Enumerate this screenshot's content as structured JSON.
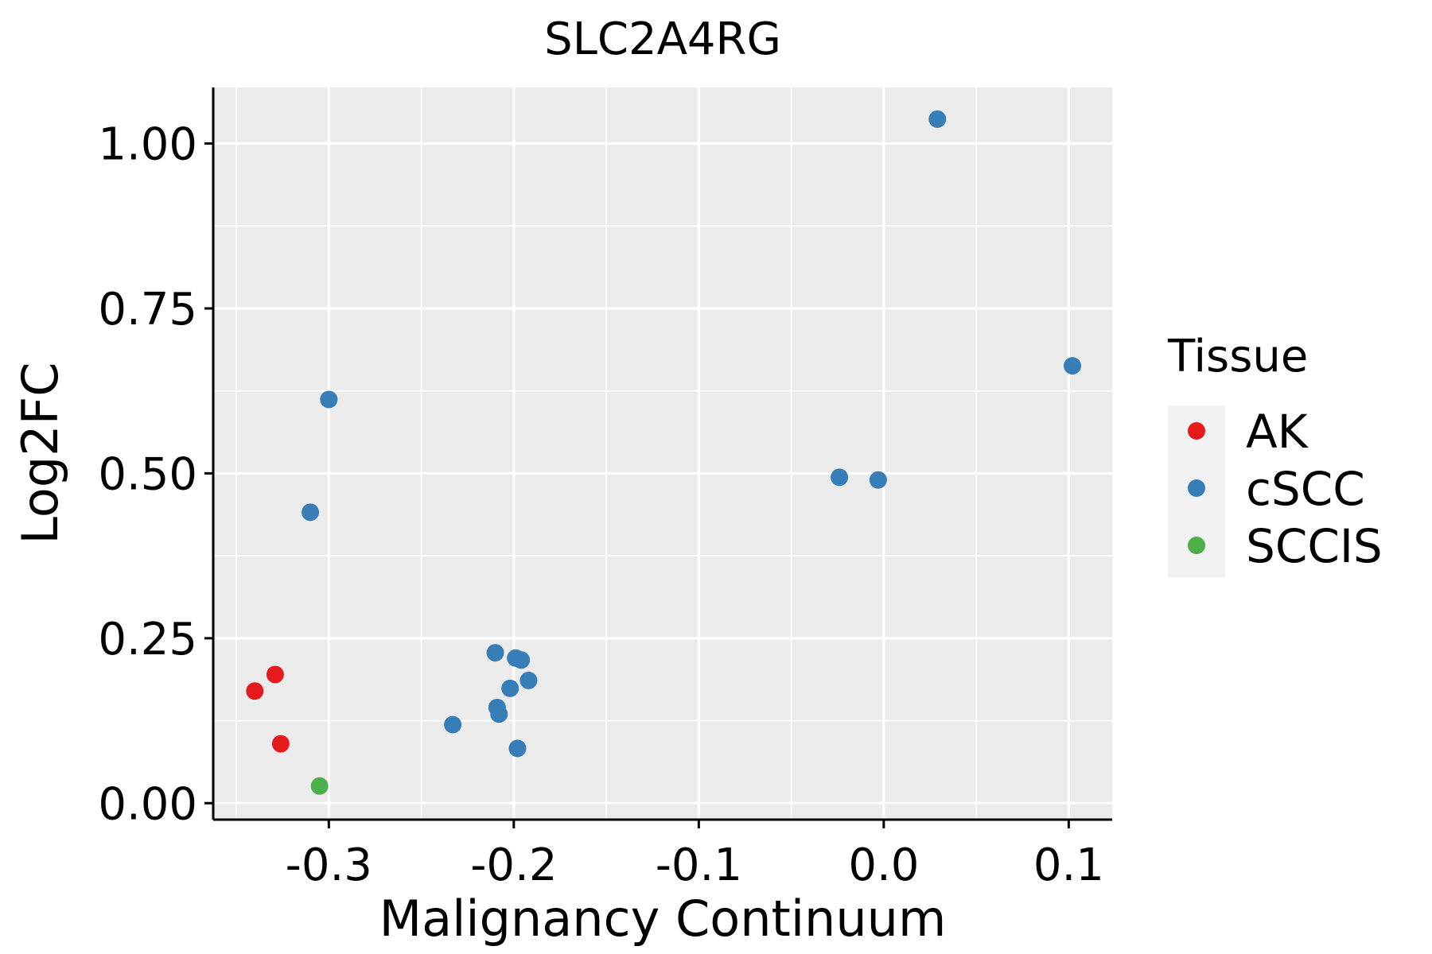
{
  "chart_data": {
    "type": "scatter",
    "title": "SLC2A4RG",
    "xlabel": "Malignancy Continuum",
    "ylabel": "Log2FC",
    "xlim": [
      -0.3625,
      0.1235
    ],
    "ylim": [
      -0.025,
      1.085
    ],
    "x_ticks": [
      -0.3,
      -0.2,
      -0.1,
      0.0,
      0.1
    ],
    "x_tick_labels": [
      "-0.3",
      "-0.2",
      "-0.1",
      "0.0",
      "0.1"
    ],
    "y_ticks": [
      0.0,
      0.25,
      0.5,
      0.75,
      1.0
    ],
    "y_tick_labels": [
      "0.00",
      "0.25",
      "0.50",
      "0.75",
      "1.00"
    ],
    "grid": true,
    "legend": {
      "title": "Tissue",
      "position": "right",
      "entries": [
        {
          "label": "AK",
          "color": "#E41A1C"
        },
        {
          "label": "cSCC",
          "color": "#377EB8"
        },
        {
          "label": "SCCIS",
          "color": "#4DAF4A"
        }
      ]
    },
    "series": [
      {
        "name": "AK",
        "color": "#E41A1C",
        "points": [
          [
            -0.34,
            0.17
          ],
          [
            -0.329,
            0.195
          ],
          [
            -0.326,
            0.09
          ]
        ]
      },
      {
        "name": "cSCC",
        "color": "#377EB8",
        "points": [
          [
            -0.3,
            0.612
          ],
          [
            -0.31,
            0.441
          ],
          [
            -0.21,
            0.228
          ],
          [
            -0.199,
            0.22
          ],
          [
            -0.196,
            0.217
          ],
          [
            -0.192,
            0.186
          ],
          [
            -0.202,
            0.174
          ],
          [
            -0.209,
            0.145
          ],
          [
            -0.208,
            0.135
          ],
          [
            -0.233,
            0.119
          ],
          [
            -0.198,
            0.083
          ],
          [
            -0.024,
            0.494
          ],
          [
            -0.003,
            0.49
          ],
          [
            0.029,
            1.037
          ],
          [
            0.102,
            0.663
          ]
        ]
      },
      {
        "name": "SCCIS",
        "color": "#4DAF4A",
        "points": [
          [
            -0.305,
            0.026
          ]
        ]
      }
    ]
  }
}
